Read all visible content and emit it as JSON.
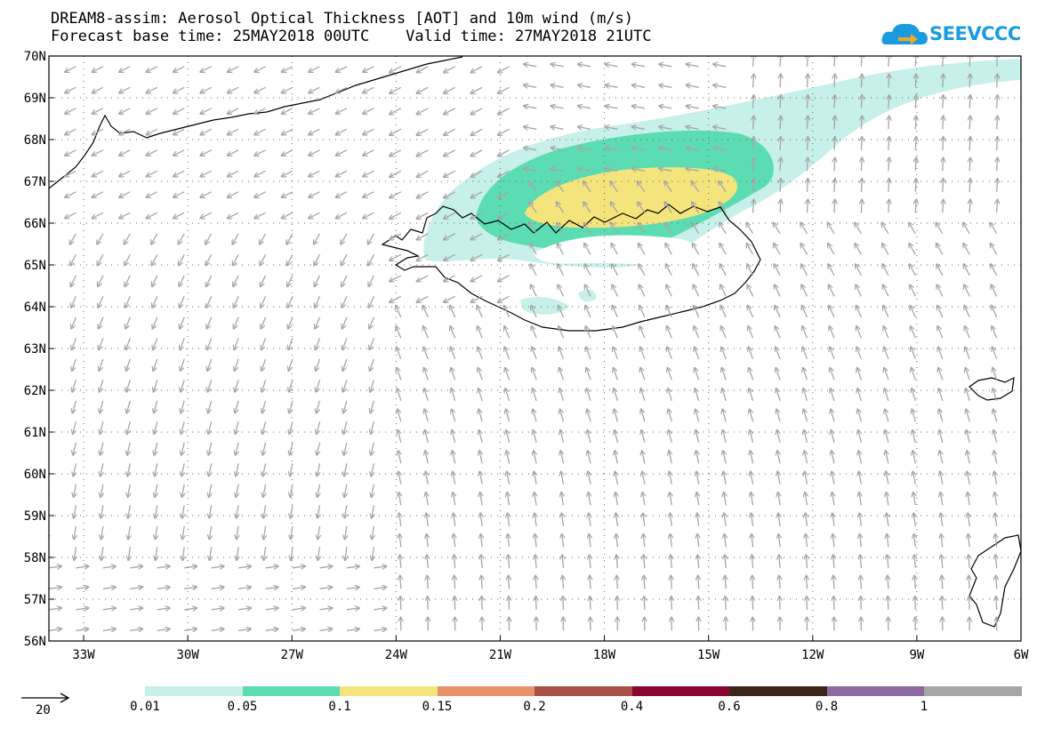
{
  "title_line1": "DREAM8-assim: Aerosol Optical Thickness [AOT] and 10m wind (m/s)",
  "title_line2": "Forecast base time: 25MAY2018 00UTC    Valid time: 27MAY2018 21UTC",
  "logo_text": "SEEVCCC",
  "logo_icon": "cloud-arrow-icon",
  "map": {
    "lon_range": [
      -34,
      -6
    ],
    "lat_range": [
      56,
      70
    ],
    "lat_labels": [
      "70N",
      "69N",
      "68N",
      "67N",
      "66N",
      "65N",
      "64N",
      "63N",
      "62N",
      "61N",
      "60N",
      "59N",
      "58N",
      "57N",
      "56N"
    ],
    "lon_labels": [
      "33W",
      "30W",
      "27W",
      "24W",
      "21W",
      "18W",
      "15W",
      "12W",
      "9W",
      "6W"
    ],
    "aot_field_levels": [
      {
        "threshold": "0.01",
        "color": "#c6f0e9"
      },
      {
        "threshold": "0.05",
        "color": "#5cdcb2"
      },
      {
        "threshold": "0.1",
        "color": "#f4e47c"
      }
    ],
    "vector_color": "#a6a6a6",
    "coast_color": "#000000"
  },
  "legend": {
    "reference_vector_label": "20",
    "colorbar": [
      {
        "color": "#c6f0e9",
        "label": "0.01"
      },
      {
        "color": "#5cdcb2",
        "label": "0.05"
      },
      {
        "color": "#f4e47c",
        "label": "0.1"
      },
      {
        "color": "#e8906a",
        "label": "0.15"
      },
      {
        "color": "#a85046",
        "label": "0.2"
      },
      {
        "color": "#8a0530",
        "label": "0.4"
      },
      {
        "color": "#3c2418",
        "label": "0.6"
      },
      {
        "color": "#8c6aa0",
        "label": "0.8"
      },
      {
        "color": "#a6a6a6",
        "label": "1"
      }
    ]
  }
}
